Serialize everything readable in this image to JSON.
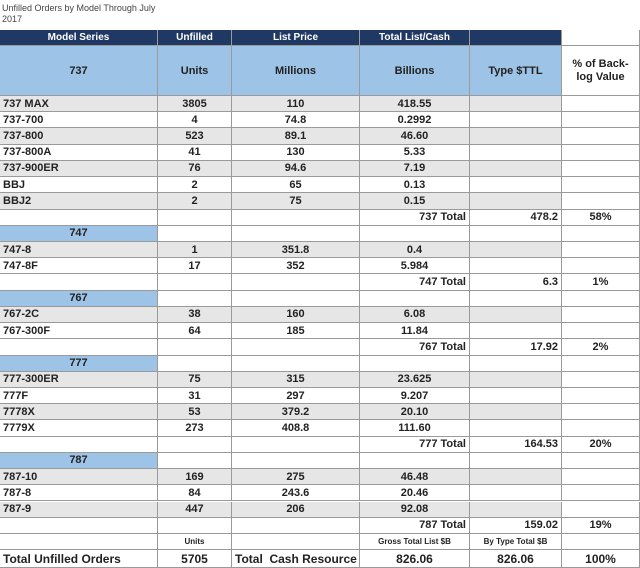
{
  "title": "Unfilled Orders by Model Through July 2017",
  "header": {
    "top": [
      "Model Series",
      "Unfilled",
      "List Price",
      "Total List/Cash"
    ],
    "sub": [
      "737",
      "Units",
      "Millions",
      "Billions",
      "Type $TTL"
    ],
    "share": "% of Back-log Value"
  },
  "groups": [
    {
      "rows": [
        [
          "737 MAX",
          "3805",
          "110",
          "418.55"
        ],
        [
          "737-700",
          "4",
          "74.8",
          "0.2992"
        ],
        [
          "737-800",
          "523",
          "89.1",
          "46.60"
        ],
        [
          "737-800A",
          "41",
          "130",
          "5.33"
        ],
        [
          "737-900ER",
          "76",
          "94.6",
          "7.19"
        ],
        [
          "BBJ",
          "2",
          "65",
          "0.13"
        ],
        [
          "BBJ2",
          "2",
          "75",
          "0.15"
        ]
      ],
      "total": {
        "label": "737 Total",
        "value": "478.2",
        "share": "58%"
      }
    },
    {
      "name": "747",
      "rows": [
        [
          "747-8",
          "1",
          "351.8",
          "0.4"
        ],
        [
          "747-8F",
          "17",
          "352",
          "5.984"
        ]
      ],
      "total": {
        "label": "747 Total",
        "value": "6.3",
        "share": "1%"
      }
    },
    {
      "name": "767",
      "rows": [
        [
          "767-2C",
          "38",
          "160",
          "6.08"
        ],
        [
          "767-300F",
          "64",
          "185",
          "11.84"
        ]
      ],
      "total": {
        "label": "767 Total",
        "value": "17.92",
        "share": "2%"
      }
    },
    {
      "name": "777",
      "rows": [
        [
          "777-300ER",
          "75",
          "315",
          "23.625"
        ],
        [
          "777F",
          "31",
          "297",
          "9.207"
        ],
        [
          "7778X",
          "53",
          "379.2",
          "20.10"
        ],
        [
          "7779X",
          "273",
          "408.8",
          "111.60"
        ]
      ],
      "total": {
        "label": "777 Total",
        "value": "164.53",
        "share": "20%"
      }
    },
    {
      "name": "787",
      "rows": [
        [
          "787-10",
          "169",
          "275",
          "46.48"
        ],
        [
          "787-8",
          "84",
          "243.6",
          "20.46"
        ],
        [
          "787-9",
          "447",
          "206",
          "92.08"
        ]
      ],
      "total": {
        "label": "787 Total",
        "value": "159.02",
        "share": "19%"
      }
    }
  ],
  "footer": {
    "labels": [
      "Units",
      "Gross Total List $B",
      "By Type Total $B"
    ],
    "total": [
      "Total Unfilled Orders",
      "5705",
      "Total  Cash Resource",
      "826.06",
      "826.06",
      "100%"
    ]
  }
}
